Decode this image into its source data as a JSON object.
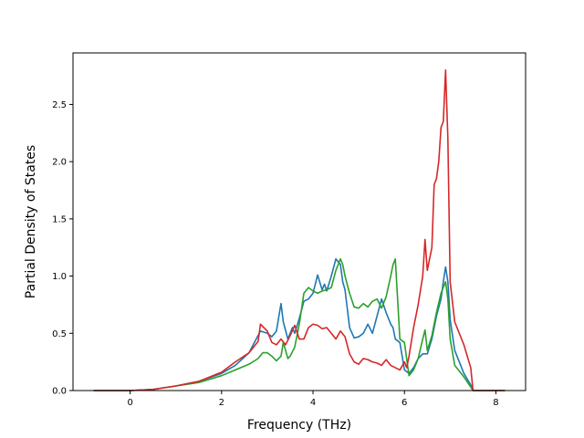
{
  "chart_data": {
    "type": "line",
    "title": "",
    "xlabel": "Frequency (THz)",
    "ylabel": "Partial Density of States",
    "xlim": [
      -1.25,
      8.65
    ],
    "ylim": [
      0.0,
      2.95
    ],
    "xticks": [
      0,
      2,
      4,
      6,
      8
    ],
    "xtick_labels": [
      "0",
      "2",
      "4",
      "6",
      "8"
    ],
    "yticks": [
      0.0,
      0.5,
      1.0,
      1.5,
      2.0,
      2.5
    ],
    "ytick_labels": [
      "0.0",
      "0.5",
      "1.0",
      "1.5",
      "2.0",
      "2.5"
    ],
    "grid": false,
    "legend": "none",
    "series": [
      {
        "color": "#1f77b4",
        "x": [
          -0.8,
          0.0,
          0.5,
          1.0,
          1.5,
          2.0,
          2.3,
          2.6,
          2.85,
          3.0,
          3.1,
          3.2,
          3.3,
          3.35,
          3.45,
          3.55,
          3.6,
          3.7,
          3.8,
          3.9,
          4.0,
          4.1,
          4.2,
          4.25,
          4.3,
          4.4,
          4.5,
          4.6,
          4.65,
          4.7,
          4.8,
          4.9,
          5.0,
          5.1,
          5.2,
          5.3,
          5.4,
          5.5,
          5.6,
          5.7,
          5.75,
          5.8,
          5.9,
          6.0,
          6.1,
          6.2,
          6.3,
          6.4,
          6.5,
          6.6,
          6.7,
          6.8,
          6.85,
          6.9,
          6.95,
          7.0,
          7.1,
          7.3,
          7.45,
          7.5,
          7.8,
          8.2
        ],
        "y": [
          0.0,
          0.0,
          0.01,
          0.04,
          0.08,
          0.15,
          0.22,
          0.33,
          0.52,
          0.5,
          0.47,
          0.52,
          0.76,
          0.6,
          0.45,
          0.55,
          0.5,
          0.63,
          0.78,
          0.8,
          0.85,
          1.01,
          0.88,
          0.93,
          0.87,
          1.0,
          1.15,
          1.1,
          0.95,
          0.88,
          0.55,
          0.46,
          0.47,
          0.5,
          0.58,
          0.5,
          0.65,
          0.8,
          0.68,
          0.58,
          0.55,
          0.45,
          0.42,
          0.18,
          0.15,
          0.2,
          0.28,
          0.32,
          0.32,
          0.45,
          0.65,
          0.8,
          0.95,
          1.08,
          0.95,
          0.62,
          0.35,
          0.15,
          0.05,
          0.0,
          0.0,
          0.0
        ]
      },
      {
        "color": "#2ca02c",
        "x": [
          -0.8,
          0.0,
          0.5,
          1.0,
          1.5,
          2.0,
          2.3,
          2.6,
          2.8,
          2.9,
          3.0,
          3.1,
          3.2,
          3.3,
          3.35,
          3.45,
          3.5,
          3.6,
          3.7,
          3.8,
          3.9,
          4.0,
          4.1,
          4.2,
          4.3,
          4.4,
          4.5,
          4.6,
          4.65,
          4.7,
          4.8,
          4.9,
          5.0,
          5.1,
          5.2,
          5.3,
          5.4,
          5.5,
          5.6,
          5.7,
          5.75,
          5.8,
          5.9,
          6.0,
          6.1,
          6.2,
          6.3,
          6.4,
          6.45,
          6.5,
          6.6,
          6.7,
          6.8,
          6.9,
          6.95,
          7.0,
          7.1,
          7.3,
          7.45,
          7.5,
          7.8,
          8.2
        ],
        "y": [
          0.0,
          0.0,
          0.01,
          0.04,
          0.07,
          0.13,
          0.18,
          0.23,
          0.28,
          0.33,
          0.33,
          0.3,
          0.26,
          0.3,
          0.42,
          0.28,
          0.3,
          0.38,
          0.58,
          0.85,
          0.9,
          0.87,
          0.85,
          0.87,
          0.88,
          0.9,
          1.05,
          1.15,
          1.1,
          1.0,
          0.85,
          0.73,
          0.72,
          0.76,
          0.73,
          0.78,
          0.8,
          0.72,
          0.82,
          1.0,
          1.1,
          1.15,
          0.45,
          0.42,
          0.13,
          0.18,
          0.28,
          0.45,
          0.53,
          0.35,
          0.48,
          0.68,
          0.85,
          0.95,
          0.8,
          0.45,
          0.22,
          0.12,
          0.03,
          0.0,
          0.0,
          0.0
        ]
      },
      {
        "color": "#d62728",
        "x": [
          -0.8,
          0.0,
          0.5,
          1.0,
          1.5,
          2.0,
          2.3,
          2.6,
          2.8,
          2.85,
          3.0,
          3.1,
          3.2,
          3.3,
          3.4,
          3.5,
          3.6,
          3.7,
          3.8,
          3.9,
          4.0,
          4.1,
          4.2,
          4.3,
          4.4,
          4.5,
          4.6,
          4.7,
          4.8,
          4.9,
          5.0,
          5.1,
          5.2,
          5.3,
          5.4,
          5.5,
          5.6,
          5.7,
          5.8,
          5.9,
          6.0,
          6.05,
          6.1,
          6.2,
          6.3,
          6.4,
          6.45,
          6.5,
          6.6,
          6.65,
          6.7,
          6.75,
          6.8,
          6.85,
          6.9,
          6.95,
          7.0,
          7.1,
          7.3,
          7.45,
          7.5,
          7.8,
          8.2
        ],
        "y": [
          0.0,
          0.0,
          0.01,
          0.04,
          0.08,
          0.16,
          0.25,
          0.33,
          0.43,
          0.58,
          0.52,
          0.42,
          0.4,
          0.45,
          0.4,
          0.48,
          0.57,
          0.45,
          0.45,
          0.55,
          0.58,
          0.57,
          0.54,
          0.55,
          0.5,
          0.45,
          0.52,
          0.47,
          0.32,
          0.25,
          0.23,
          0.28,
          0.27,
          0.25,
          0.24,
          0.22,
          0.27,
          0.22,
          0.2,
          0.18,
          0.25,
          0.2,
          0.3,
          0.55,
          0.75,
          1.0,
          1.32,
          1.05,
          1.25,
          1.8,
          1.85,
          2.0,
          2.3,
          2.35,
          2.8,
          2.2,
          0.95,
          0.6,
          0.4,
          0.2,
          0.0,
          0.0,
          0.0
        ]
      }
    ]
  }
}
